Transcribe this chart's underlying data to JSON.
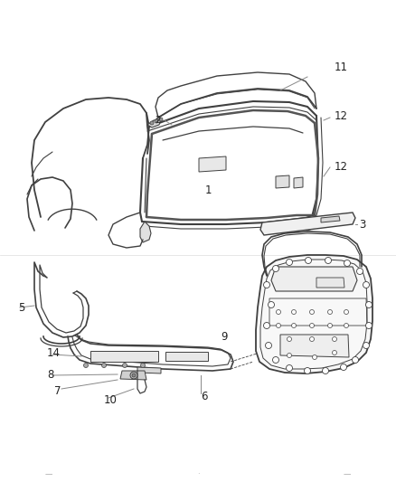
{
  "background_color": "#ffffff",
  "line_color": "#404040",
  "line_color_light": "#888888",
  "text_color": "#222222",
  "fig_width": 4.38,
  "fig_height": 5.33,
  "dpi": 100,
  "footer_texts": [
    "—",
    "·",
    "—"
  ]
}
